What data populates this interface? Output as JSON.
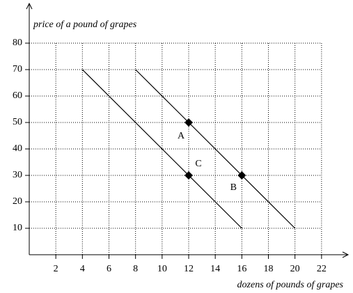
{
  "chart_data": {
    "type": "line",
    "ylabel": "price of a pound of grapes",
    "xlabel": "dozens of pounds of grapes",
    "xlim": [
      0,
      24
    ],
    "ylim": [
      0,
      95
    ],
    "xticks": [
      2,
      4,
      6,
      8,
      10,
      12,
      14,
      16,
      18,
      20,
      22
    ],
    "yticks": [
      10,
      20,
      30,
      40,
      50,
      60,
      70,
      80
    ],
    "grid": true,
    "series": [
      {
        "color": "#000000",
        "x": [
          4,
          16
        ],
        "values": [
          70,
          10
        ]
      },
      {
        "color": "#000000",
        "x": [
          8,
          20
        ],
        "values": [
          70,
          10
        ]
      }
    ],
    "points": [
      {
        "label": "A",
        "x": 12,
        "y": 50
      },
      {
        "label": "C",
        "x": 12,
        "y": 30
      },
      {
        "label": "B",
        "x": 16,
        "y": 30
      }
    ],
    "point_color": "#000000"
  }
}
